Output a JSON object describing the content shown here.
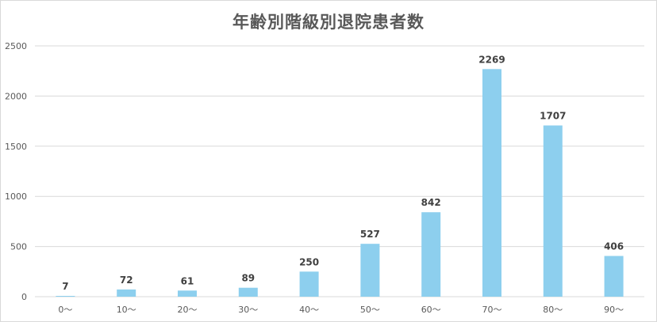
{
  "chart_data": {
    "type": "bar",
    "title": "年齢別階級別退院患者数",
    "categories": [
      "0～",
      "10～",
      "20～",
      "30～",
      "40～",
      "50～",
      "60～",
      "70～",
      "80～",
      "90～"
    ],
    "values": [
      7,
      72,
      61,
      89,
      250,
      527,
      842,
      2269,
      1707,
      406
    ],
    "ylim": [
      0,
      2500
    ],
    "yticks": [
      0,
      500,
      1000,
      1500,
      2000,
      2500
    ],
    "grid": true,
    "legend": "none",
    "bar_color": "#8DCFEE",
    "grid_color": "#d9d9d9"
  }
}
